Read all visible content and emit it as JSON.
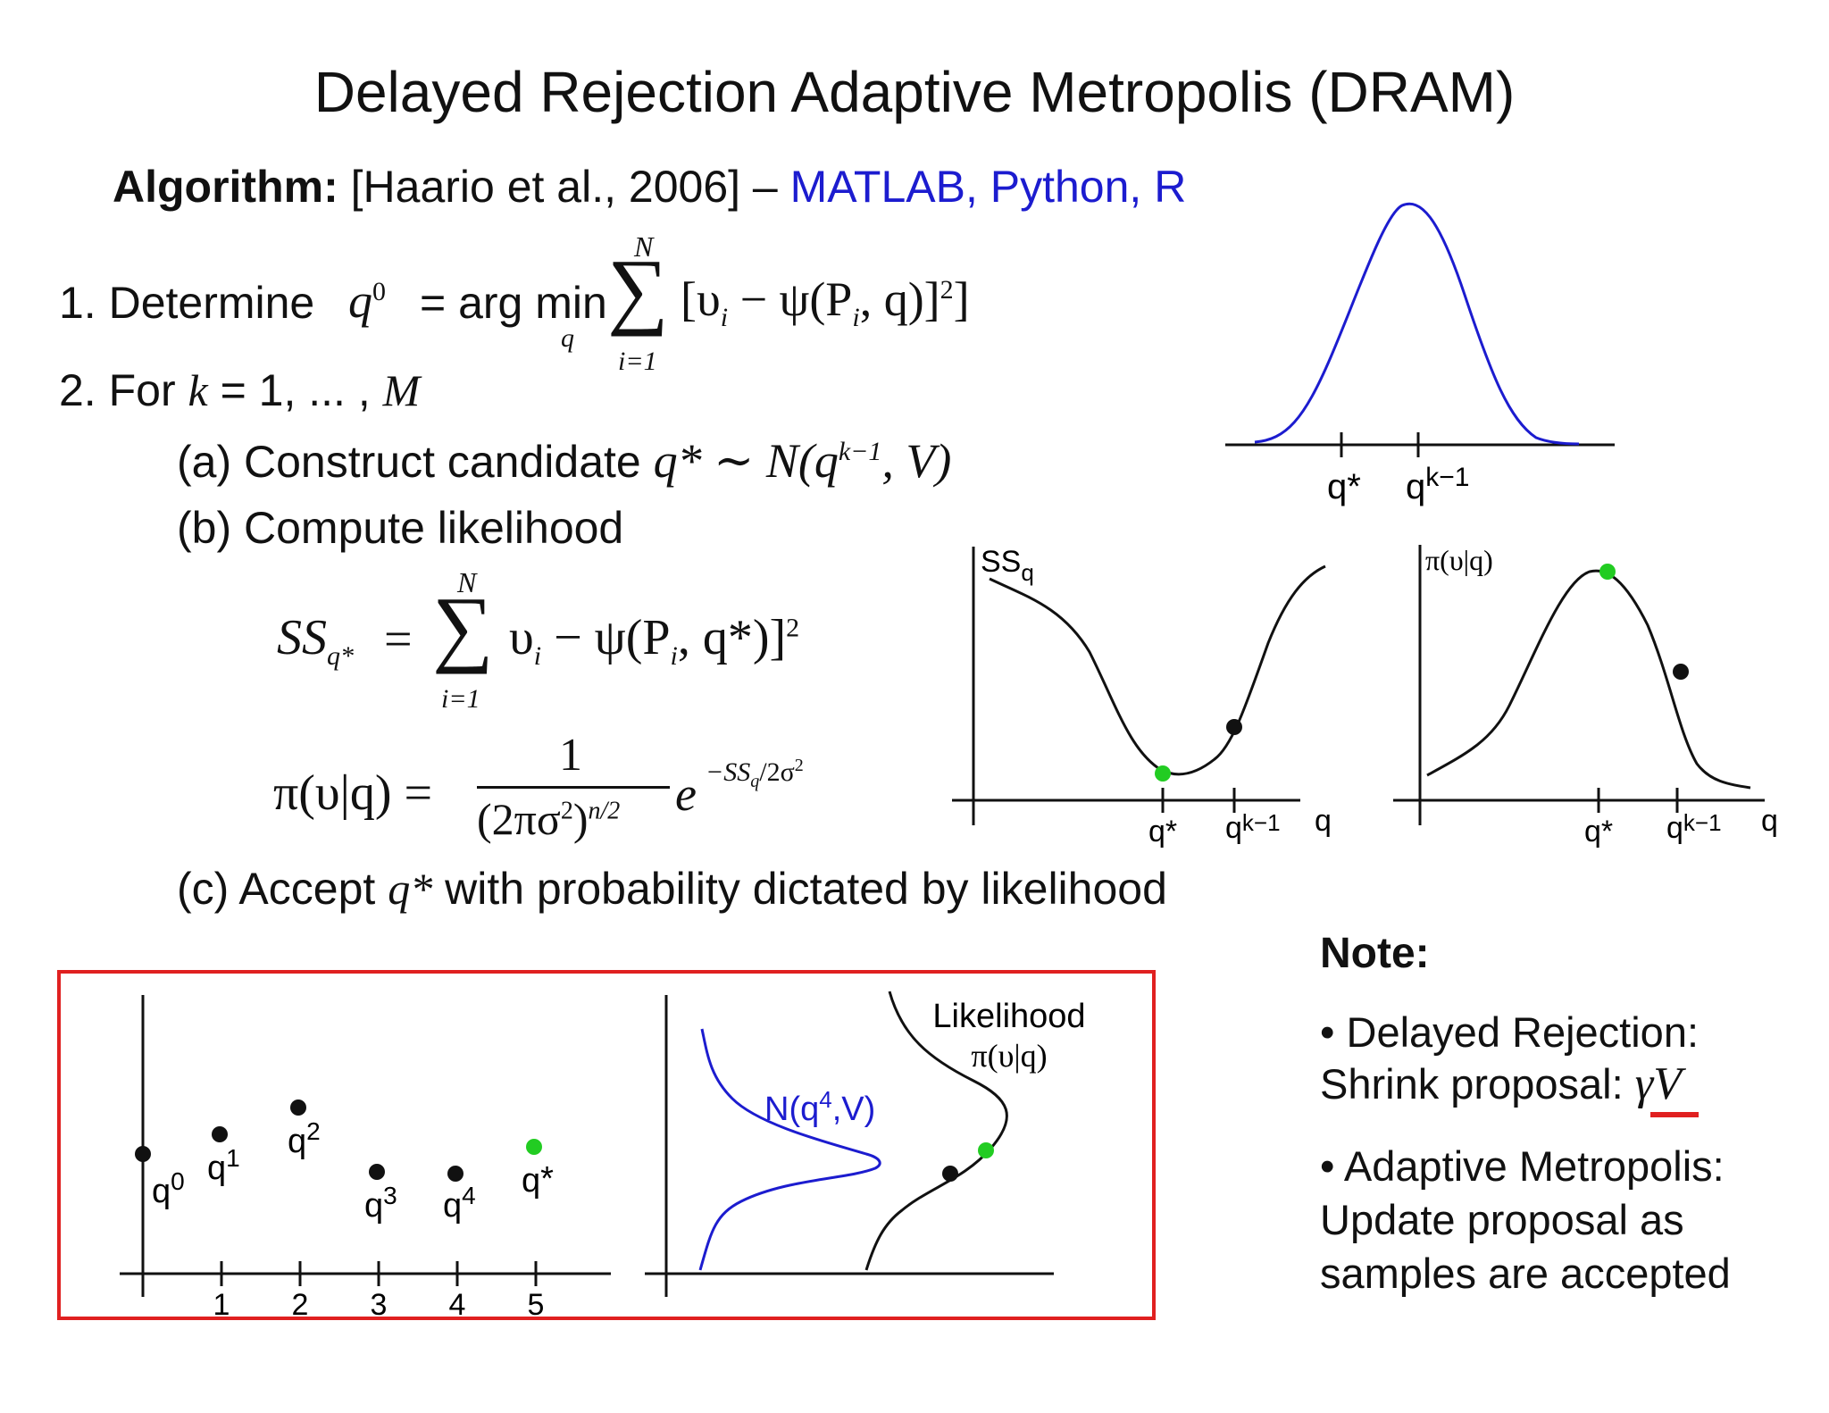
{
  "title": "Delayed Rejection Adaptive Metropolis (DRAM)",
  "algorithm": {
    "label": "Algorithm:",
    "citation": "[Haario et al., 2006] –",
    "languages": "MATLAB, Python, R",
    "link_color": "#1c1ccf"
  },
  "steps": {
    "s1_prefix": "1. Determine",
    "s1_q0": "q",
    "s1_q0_sup": "0",
    "s1_argmin": "= arg min",
    "s1_argmin_sub": "q",
    "s1_sum_top": "N",
    "s1_sum_bottom": "i=1",
    "s1_sum_body": "[υ",
    "s1_sum_body_i": "i",
    "s1_sum_body_rest": " − ψ(P",
    "s1_sum_body_pi": "i",
    "s1_sum_body_end": ", q)]",
    "s1_sum_sup": "2",
    "s1_close": "]",
    "s2": "2. For",
    "s2_k": "k",
    "s2_rest": " = 1, ... ,",
    "s2_M": "M",
    "a_prefix": "(a) Construct candidate",
    "a_math": "q* ∼ N(q",
    "a_sup": "k−1",
    "a_end": ", V)",
    "b": "(b) Compute likelihood",
    "ss_lhs": "SS",
    "ss_lhs_sub": "q*",
    "ss_eq": "=",
    "ss_sum_top": "N",
    "ss_sum_bottom": "i=1",
    "ss_body": "υ",
    "ss_body_i": "i",
    "ss_body_rest": " − ψ(P",
    "ss_body_pi": "i",
    "ss_body_end": ", q*)]",
    "ss_sup": "2",
    "pi_lhs": "π(υ|q) =",
    "pi_num": "1",
    "pi_den": "(2πσ",
    "pi_den_sup": "2",
    "pi_den_end": ")",
    "pi_den_exp": "n/2",
    "pi_e": "e",
    "pi_exp": "−SS",
    "pi_exp_sub": "q",
    "pi_exp_end": "/2σ",
    "pi_exp_sup": "2",
    "c": "(c) Accept",
    "c_q": "q*",
    "c_rest": "with probability dictated by likelihood"
  },
  "proposal_plot": {
    "ticks": [
      "q*",
      "q"
    ],
    "tick2_sup": "k−1",
    "curve_color": "#1c1ccf"
  },
  "ss_plot": {
    "ylabel": "SS",
    "ylabel_sub": "q",
    "xtick1": "q*",
    "xtick2": "q",
    "xtick2_sup": "k−1",
    "xlabel": "q"
  },
  "lik_plot": {
    "ylabel": "π(υ|q)",
    "xtick1": "q*",
    "xtick2": "q",
    "xtick2_sup": "k−1",
    "xlabel": "q"
  },
  "chain_plot": {
    "points": [
      {
        "label": "q",
        "sup": "0"
      },
      {
        "label": "q",
        "sup": "1"
      },
      {
        "label": "q",
        "sup": "2"
      },
      {
        "label": "q",
        "sup": "3"
      },
      {
        "label": "q",
        "sup": "4"
      },
      {
        "label": "q",
        "sup": "*"
      }
    ],
    "xticks": [
      "1",
      "2",
      "3",
      "4",
      "5"
    ],
    "accent_color": "#22cc22"
  },
  "dist_plot": {
    "normal_label": "N(q",
    "normal_sup": "4",
    "normal_end": ",V)",
    "likelihood_label": "Likelihood",
    "likelihood_math": "π(υ|q)"
  },
  "note": {
    "title": "Note:",
    "dr_line1": "• Delayed Rejection:",
    "dr_line2": "Shrink proposal:",
    "dr_math": "γV",
    "am_line1": "• Adaptive Metropolis:",
    "am_line2": "Update proposal as",
    "am_line3": "samples are accepted"
  },
  "colors": {
    "green": "#22cc22",
    "black": "#111111",
    "red_box": "#e02020",
    "blue": "#1c1ccf"
  }
}
